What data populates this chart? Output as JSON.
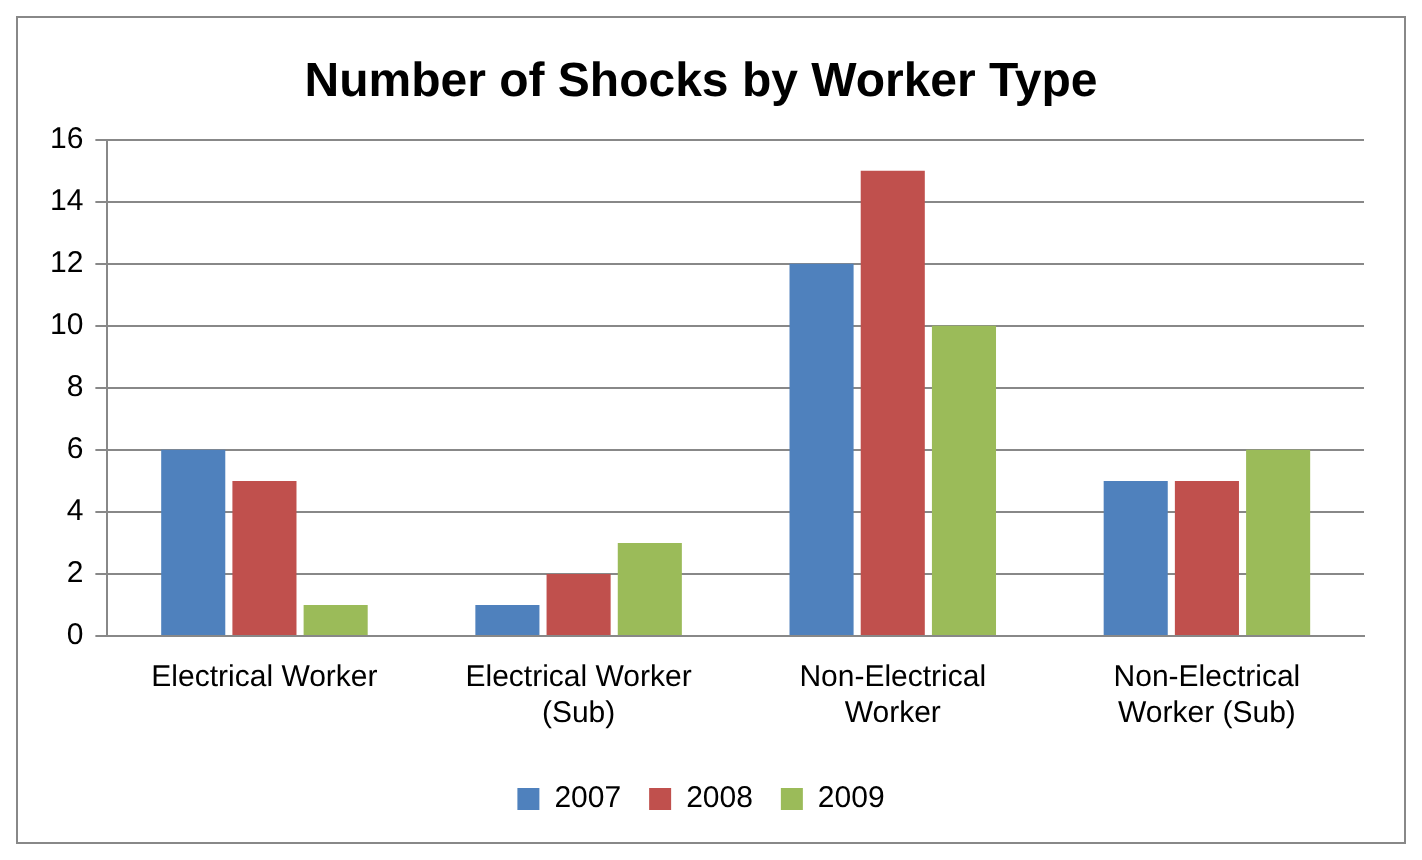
{
  "chart_data": {
    "type": "bar",
    "title": "Number of Shocks by Worker Type",
    "categories": [
      "Electrical Worker",
      "Electrical Worker (Sub)",
      "Non-Electrical Worker",
      "Non-Electrical Worker (Sub)"
    ],
    "series": [
      {
        "name": "2007",
        "color": "#4f81bd",
        "values": [
          6,
          1,
          12,
          5
        ]
      },
      {
        "name": "2008",
        "color": "#c0504d",
        "values": [
          5,
          2,
          15,
          5
        ]
      },
      {
        "name": "2009",
        "color": "#9bbb59",
        "values": [
          1,
          3,
          10,
          6
        ]
      }
    ],
    "ylim": [
      0,
      16
    ],
    "yticks": [
      0,
      2,
      4,
      6,
      8,
      10,
      12,
      14,
      16
    ],
    "grid": "y",
    "legend": "bottom"
  }
}
